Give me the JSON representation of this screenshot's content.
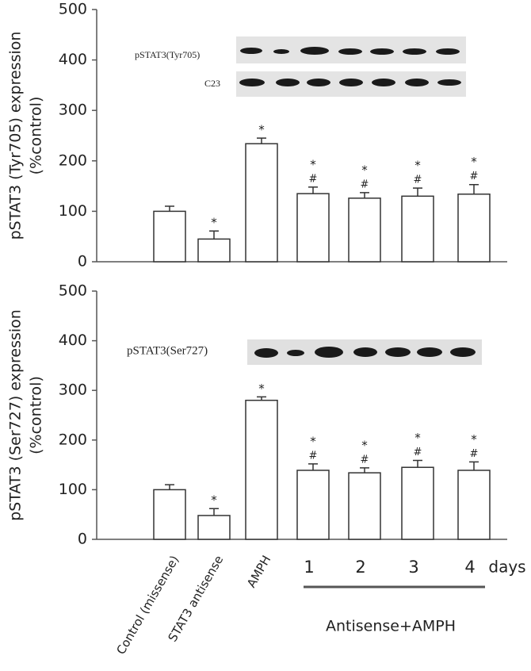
{
  "chart_data": [
    {
      "type": "bar",
      "ylabel": [
        "pSTAT3 (Tyr705) expression",
        "(%control)"
      ],
      "blot_labels": [
        "pSTAT3(Tyr705)",
        "C23"
      ],
      "categories": [
        null,
        null,
        null,
        null,
        null,
        null,
        null
      ],
      "values": [
        100,
        45,
        234,
        135,
        126,
        130,
        134
      ],
      "errors": [
        10,
        16,
        11,
        13,
        11,
        16,
        19
      ],
      "star": [
        null,
        "*",
        "*",
        "*",
        "*",
        "*",
        "*"
      ],
      "hash": [
        null,
        null,
        null,
        "#",
        "#",
        "#",
        "#"
      ],
      "color": "#ffffff",
      "ylim": [
        0,
        500
      ],
      "yticks": [
        0,
        100,
        200,
        300,
        400,
        500
      ]
    },
    {
      "type": "bar",
      "ylabel": [
        "pSTAT3 (Ser727) expression",
        "(%control)"
      ],
      "blot_labels": [
        "pSTAT3(Ser727)"
      ],
      "categories": [
        "Control (missense)",
        "STAT3 antisense",
        "AMPH",
        "1",
        "2",
        "3",
        "4"
      ],
      "unit_label": "days",
      "group_label": "Antisense+AMPH",
      "values": [
        100,
        48,
        280,
        139,
        134,
        145,
        139
      ],
      "errors": [
        10,
        14,
        7,
        13,
        10,
        14,
        17
      ],
      "star": [
        null,
        "*",
        "*",
        "*",
        "*",
        "*",
        "*"
      ],
      "hash": [
        null,
        null,
        null,
        "#",
        "#",
        "#",
        "#"
      ],
      "color": "#ffffff",
      "ylim": [
        0,
        500
      ],
      "yticks": [
        0,
        100,
        200,
        300,
        400,
        500
      ]
    }
  ]
}
